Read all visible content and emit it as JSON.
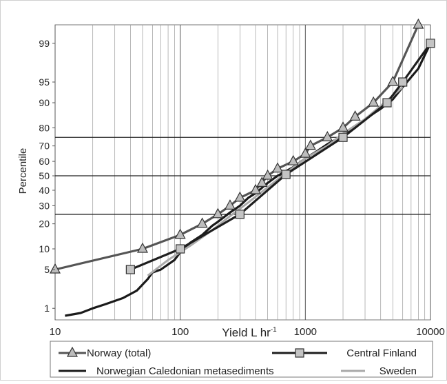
{
  "chart_data": {
    "type": "line",
    "x_scale": "log",
    "y_scale": "probability",
    "xlabel": "Yield L hr",
    "xlabel_superscript": "-1",
    "ylabel": "Percentile",
    "xlim": [
      10,
      10000
    ],
    "x_ticks": [
      "10",
      "100",
      "1000",
      "10000"
    ],
    "y_ticks": [
      "1",
      "5",
      "10",
      "20",
      "30",
      "40",
      "50",
      "60",
      "70",
      "80",
      "90",
      "95",
      "99"
    ],
    "reference_lines": [
      25,
      50,
      75
    ],
    "grid": true,
    "legend_position": "bottom",
    "series": [
      {
        "name": "Norway (total)",
        "color": "#555555",
        "marker": "triangle",
        "points": [
          [
            10,
            5
          ],
          [
            50,
            10
          ],
          [
            100,
            15
          ],
          [
            150,
            20
          ],
          [
            200,
            25
          ],
          [
            250,
            30
          ],
          [
            300,
            35
          ],
          [
            400,
            40
          ],
          [
            450,
            45
          ],
          [
            500,
            50
          ],
          [
            600,
            55
          ],
          [
            800,
            60
          ],
          [
            1000,
            65
          ],
          [
            1100,
            70
          ],
          [
            1500,
            75
          ],
          [
            2000,
            80
          ],
          [
            2500,
            85
          ],
          [
            3500,
            90
          ],
          [
            5000,
            95
          ],
          [
            8000,
            99.6
          ]
        ]
      },
      {
        "name": "Central Finland",
        "color": "#1e1e1e",
        "marker": "square",
        "points": [
          [
            40,
            5
          ],
          [
            100,
            10
          ],
          [
            300,
            25
          ],
          [
            700,
            51
          ],
          [
            2000,
            75
          ],
          [
            4500,
            90
          ],
          [
            6000,
            95
          ],
          [
            10000,
            99
          ]
        ]
      },
      {
        "name": "Norwegian Caledonian metasediments",
        "color": "#1a1a1a",
        "marker": "none",
        "points": [
          [
            12,
            0.7
          ],
          [
            16,
            0.8
          ],
          [
            20,
            1
          ],
          [
            25,
            1.2
          ],
          [
            35,
            1.6
          ],
          [
            45,
            2.2
          ],
          [
            55,
            3.5
          ],
          [
            60,
            4.5
          ],
          [
            70,
            5
          ],
          [
            80,
            6
          ],
          [
            90,
            7
          ],
          [
            100,
            9
          ],
          [
            120,
            12
          ],
          [
            150,
            15
          ],
          [
            180,
            19
          ],
          [
            200,
            21
          ],
          [
            250,
            26
          ],
          [
            300,
            30
          ],
          [
            350,
            35
          ],
          [
            400,
            38
          ],
          [
            500,
            45
          ],
          [
            600,
            50
          ],
          [
            800,
            56
          ],
          [
            1000,
            62
          ],
          [
            1200,
            66
          ],
          [
            1500,
            71
          ],
          [
            2000,
            76
          ],
          [
            2500,
            80
          ],
          [
            3000,
            84
          ],
          [
            4000,
            88
          ],
          [
            5000,
            91
          ],
          [
            6000,
            94
          ],
          [
            8000,
            97
          ],
          [
            10000,
            99
          ]
        ]
      },
      {
        "name": "Sweden",
        "color": "#aaaaaa",
        "marker": "none",
        "points": [
          [
            55,
            4
          ],
          [
            80,
            7
          ],
          [
            120,
            11
          ],
          [
            180,
            17
          ],
          [
            250,
            24
          ],
          [
            350,
            32
          ],
          [
            500,
            42
          ],
          [
            700,
            52
          ],
          [
            1000,
            62
          ],
          [
            1500,
            70
          ],
          [
            2000,
            77
          ],
          [
            3000,
            84
          ],
          [
            4000,
            89
          ],
          [
            6000,
            94
          ]
        ]
      }
    ]
  }
}
